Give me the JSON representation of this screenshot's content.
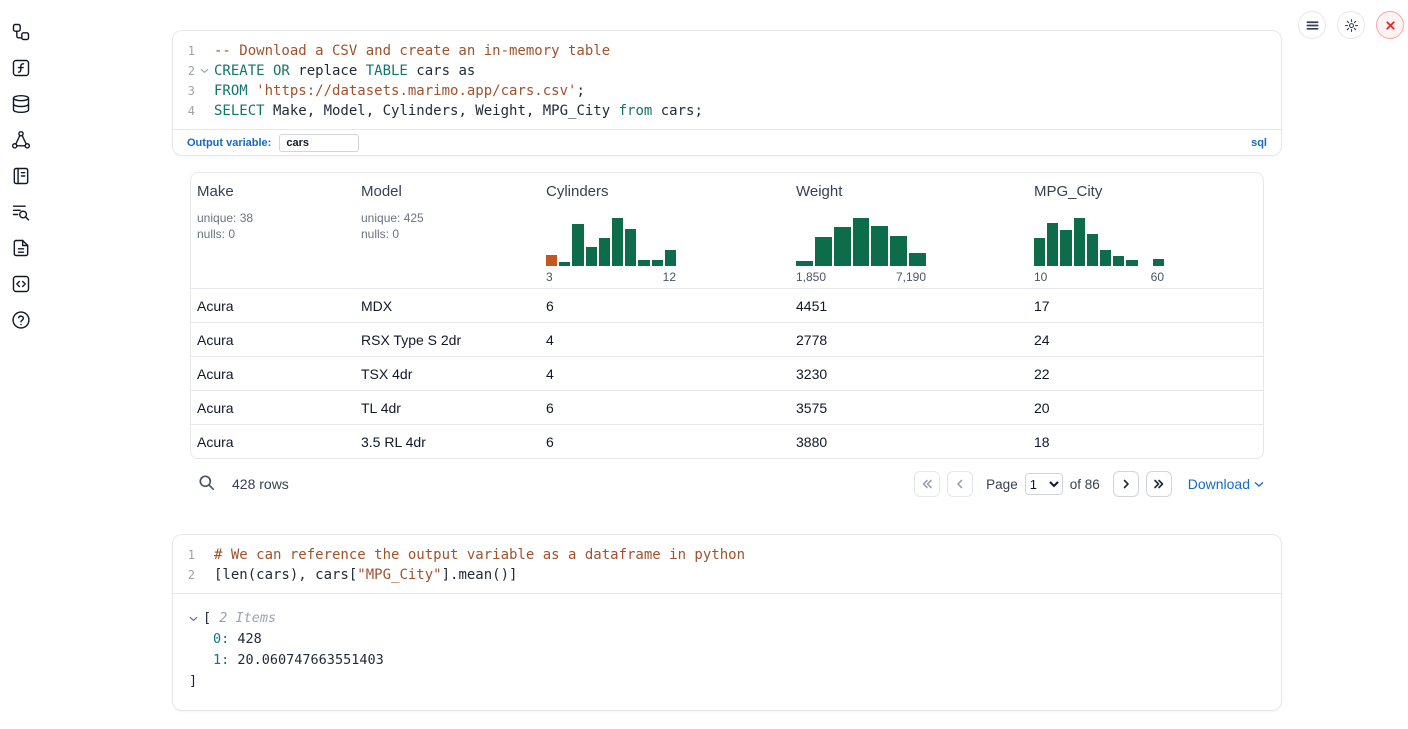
{
  "colors": {
    "keyword": "#0f766e",
    "comment": "#a0522d",
    "string": "#a0522d",
    "accent_blue": "#1769c4",
    "key_teal": "#0e7490",
    "hist_green": "#0d6d4b",
    "hist_orange": "#c2571f",
    "close_red": "#dc2626",
    "close_bg": "#fef2f2",
    "close_border": "#fca5a5"
  },
  "sidebar": {
    "icons": [
      "file-explorer",
      "scratchpad",
      "data-sources",
      "dependency-graph",
      "outline",
      "logs",
      "documentation",
      "snippets",
      "help"
    ]
  },
  "topbar": {
    "buttons": [
      "menu",
      "settings",
      "close"
    ]
  },
  "sql_cell": {
    "lines": [
      {
        "num": "1",
        "tokens": [
          [
            "-- Download a CSV and create an in-memory table",
            "com"
          ]
        ]
      },
      {
        "num": "2",
        "fold": true,
        "tokens": [
          [
            "CREATE OR",
            "kw"
          ],
          [
            " replace ",
            "pl"
          ],
          [
            "TABLE",
            "kw"
          ],
          [
            " cars as",
            "pl"
          ]
        ]
      },
      {
        "num": "3",
        "tokens": [
          [
            "FROM",
            "kw"
          ],
          [
            " ",
            "pl"
          ],
          [
            "'https://datasets.marimo.app/cars.csv'",
            "str"
          ],
          [
            ";",
            "pl"
          ]
        ]
      },
      {
        "num": "4",
        "tokens": [
          [
            "SELECT",
            "kw"
          ],
          [
            " Make, Model, Cylinders, Weight, MPG_City ",
            "pl"
          ],
          [
            "from",
            "kw"
          ],
          [
            " cars;",
            "pl"
          ]
        ]
      }
    ],
    "output_variable_label": "Output variable:",
    "output_variable_value": "cars",
    "language_badge": "sql"
  },
  "table": {
    "columns": [
      {
        "name": "Make",
        "stats": [
          "unique: 38",
          "nulls: 0"
        ]
      },
      {
        "name": "Model",
        "stats": [
          "unique: 425",
          "nulls: 0"
        ]
      },
      {
        "name": "Cylinders",
        "histogram": {
          "bars": [
            [
              22,
              "o"
            ],
            [
              8,
              "g"
            ],
            [
              88,
              "g"
            ],
            [
              40,
              "g"
            ],
            [
              58,
              "g"
            ],
            [
              100,
              "g"
            ],
            [
              78,
              "g"
            ],
            [
              12,
              "g"
            ],
            [
              12,
              "g"
            ],
            [
              34,
              "g"
            ]
          ],
          "min_label": "3",
          "max_label": "12"
        }
      },
      {
        "name": "Weight",
        "histogram": {
          "bars": [
            [
              10,
              "g"
            ],
            [
              60,
              "g"
            ],
            [
              82,
              "g"
            ],
            [
              100,
              "g"
            ],
            [
              84,
              "g"
            ],
            [
              62,
              "g"
            ],
            [
              28,
              "g"
            ]
          ],
          "min_label": "1,850",
          "max_label": "7,190"
        }
      },
      {
        "name": "MPG_City",
        "histogram": {
          "bars": [
            [
              58,
              "g"
            ],
            [
              90,
              "g"
            ],
            [
              74,
              "g"
            ],
            [
              100,
              "g"
            ],
            [
              66,
              "g"
            ],
            [
              34,
              "g"
            ],
            [
              20,
              "g"
            ],
            [
              12,
              "g"
            ],
            [
              0,
              "g"
            ],
            [
              14,
              "g"
            ]
          ],
          "min_label": "10",
          "max_label": "60"
        }
      }
    ],
    "rows": [
      [
        "Acura",
        "MDX",
        "6",
        "4451",
        "17"
      ],
      [
        "Acura",
        "RSX Type S 2dr",
        "4",
        "2778",
        "24"
      ],
      [
        "Acura",
        "TSX 4dr",
        "4",
        "3230",
        "22"
      ],
      [
        "Acura",
        "TL 4dr",
        "6",
        "3575",
        "20"
      ],
      [
        "Acura",
        "3.5 RL 4dr",
        "6",
        "3880",
        "18"
      ]
    ],
    "footer": {
      "row_count": "428 rows",
      "page_label": "Page",
      "page_value": "1",
      "of_label": "of 86",
      "download_label": "Download"
    }
  },
  "python_cell": {
    "lines": [
      {
        "num": "1",
        "tokens": [
          [
            "# We can reference the output variable as a dataframe in python",
            "com"
          ]
        ]
      },
      {
        "num": "2",
        "tokens": [
          [
            "[len(cars), cars[",
            "pl"
          ],
          [
            "\"MPG_City\"",
            "str"
          ],
          [
            "].mean()]",
            "pl"
          ]
        ]
      }
    ],
    "output": {
      "lines": [
        {
          "chevron": true,
          "tokens": [
            [
              "[",
              "pl"
            ],
            [
              " 2 Items",
              "muted"
            ]
          ]
        },
        {
          "indent": 1,
          "tokens": [
            [
              "0:",
              "key"
            ],
            [
              " ",
              "pl"
            ],
            [
              "428",
              "pl"
            ]
          ]
        },
        {
          "indent": 1,
          "tokens": [
            [
              "1:",
              "key"
            ],
            [
              " ",
              "pl"
            ],
            [
              "20.060747663551403",
              "pl"
            ]
          ]
        },
        {
          "tokens": [
            [
              "]",
              "pl"
            ]
          ]
        }
      ]
    }
  }
}
